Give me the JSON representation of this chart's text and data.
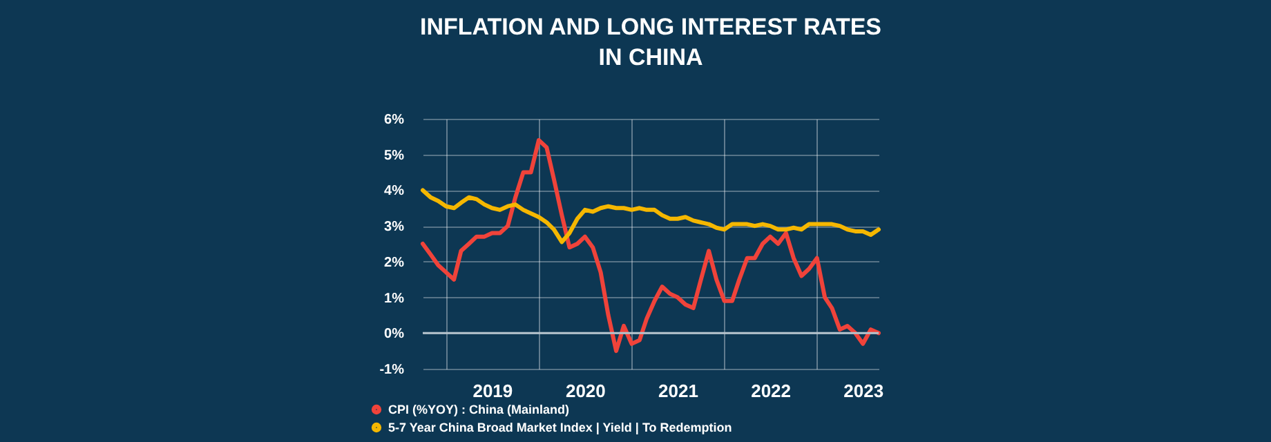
{
  "chart_data": {
    "type": "line",
    "title": [
      "INFLATION AND LONG INTEREST RATES",
      "IN CHINA"
    ],
    "x": [
      "2018-10",
      "2018-11",
      "2018-12",
      "2019-01",
      "2019-02",
      "2019-03",
      "2019-04",
      "2019-05",
      "2019-06",
      "2019-07",
      "2019-08",
      "2019-09",
      "2019-10",
      "2019-11",
      "2019-12",
      "2020-01",
      "2020-02",
      "2020-03",
      "2020-04",
      "2020-05",
      "2020-06",
      "2020-07",
      "2020-08",
      "2020-09",
      "2020-10",
      "2020-11",
      "2020-12",
      "2021-01",
      "2021-02",
      "2021-03",
      "2021-04",
      "2021-05",
      "2021-06",
      "2021-07",
      "2021-08",
      "2021-09",
      "2021-10",
      "2021-11",
      "2021-12",
      "2022-01",
      "2022-02",
      "2022-03",
      "2022-04",
      "2022-05",
      "2022-06",
      "2022-07",
      "2022-08",
      "2022-09",
      "2022-10",
      "2022-11",
      "2022-12",
      "2023-01",
      "2023-02",
      "2023-03",
      "2023-04",
      "2023-05",
      "2023-06",
      "2023-07",
      "2023-08",
      "2023-09"
    ],
    "series": [
      {
        "name": "CPI (%YOY) : China (Mainland)",
        "color": "#f0433a",
        "values": [
          2.5,
          2.2,
          1.9,
          1.7,
          1.5,
          2.3,
          2.5,
          2.7,
          2.7,
          2.8,
          2.8,
          3.0,
          3.8,
          4.5,
          4.5,
          5.4,
          5.2,
          4.3,
          3.3,
          2.4,
          2.5,
          2.7,
          2.4,
          1.7,
          0.5,
          -0.5,
          0.2,
          -0.3,
          -0.2,
          0.4,
          0.9,
          1.3,
          1.1,
          1.0,
          0.8,
          0.7,
          1.5,
          2.3,
          1.5,
          0.9,
          0.9,
          1.5,
          2.1,
          2.1,
          2.5,
          2.7,
          2.5,
          2.8,
          2.1,
          1.6,
          1.8,
          2.1,
          1.0,
          0.7,
          0.1,
          0.2,
          0.0,
          -0.3,
          0.1,
          0.0
        ]
      },
      {
        "name": "5-7 Year China Broad Market Index | Yield | To Redemption",
        "color": "#f5b700",
        "values": [
          4.0,
          3.8,
          3.7,
          3.55,
          3.5,
          3.65,
          3.8,
          3.75,
          3.6,
          3.5,
          3.45,
          3.55,
          3.6,
          3.45,
          3.35,
          3.25,
          3.1,
          2.9,
          2.55,
          2.8,
          3.2,
          3.45,
          3.4,
          3.5,
          3.55,
          3.5,
          3.5,
          3.45,
          3.5,
          3.45,
          3.45,
          3.3,
          3.2,
          3.2,
          3.25,
          3.15,
          3.1,
          3.05,
          2.95,
          2.9,
          3.05,
          3.05,
          3.05,
          3.0,
          3.05,
          3.0,
          2.9,
          2.9,
          2.95,
          2.9,
          3.05,
          3.05,
          3.05,
          3.05,
          3.0,
          2.9,
          2.85,
          2.85,
          2.75,
          2.9
        ]
      }
    ],
    "xlim": [
      "2018-10",
      "2023-09"
    ],
    "xticks": [
      {
        "value": "2019-01",
        "label": null
      },
      {
        "value": "2019-07",
        "label": "2019"
      },
      {
        "value": "2020-01",
        "label": null
      },
      {
        "value": "2020-07",
        "label": "2020"
      },
      {
        "value": "2021-01",
        "label": null
      },
      {
        "value": "2021-07",
        "label": "2021"
      },
      {
        "value": "2022-01",
        "label": null
      },
      {
        "value": "2022-07",
        "label": "2022"
      },
      {
        "value": "2023-01",
        "label": null
      },
      {
        "value": "2023-07",
        "label": "2023"
      }
    ],
    "ylim": [
      -1,
      6
    ],
    "yticks": [
      {
        "value": -1,
        "label": "-1%"
      },
      {
        "value": 0,
        "label": "0%"
      },
      {
        "value": 1,
        "label": "1%"
      },
      {
        "value": 2,
        "label": "2%"
      },
      {
        "value": 3,
        "label": "3%"
      },
      {
        "value": 4,
        "label": "4%"
      },
      {
        "value": 5,
        "label": "5%"
      },
      {
        "value": 6,
        "label": "6%"
      }
    ],
    "ref_lines": [
      {
        "axis": "y",
        "value": 0,
        "color": "#b4c2cc"
      }
    ],
    "grid": true,
    "legend": "bottom left"
  }
}
